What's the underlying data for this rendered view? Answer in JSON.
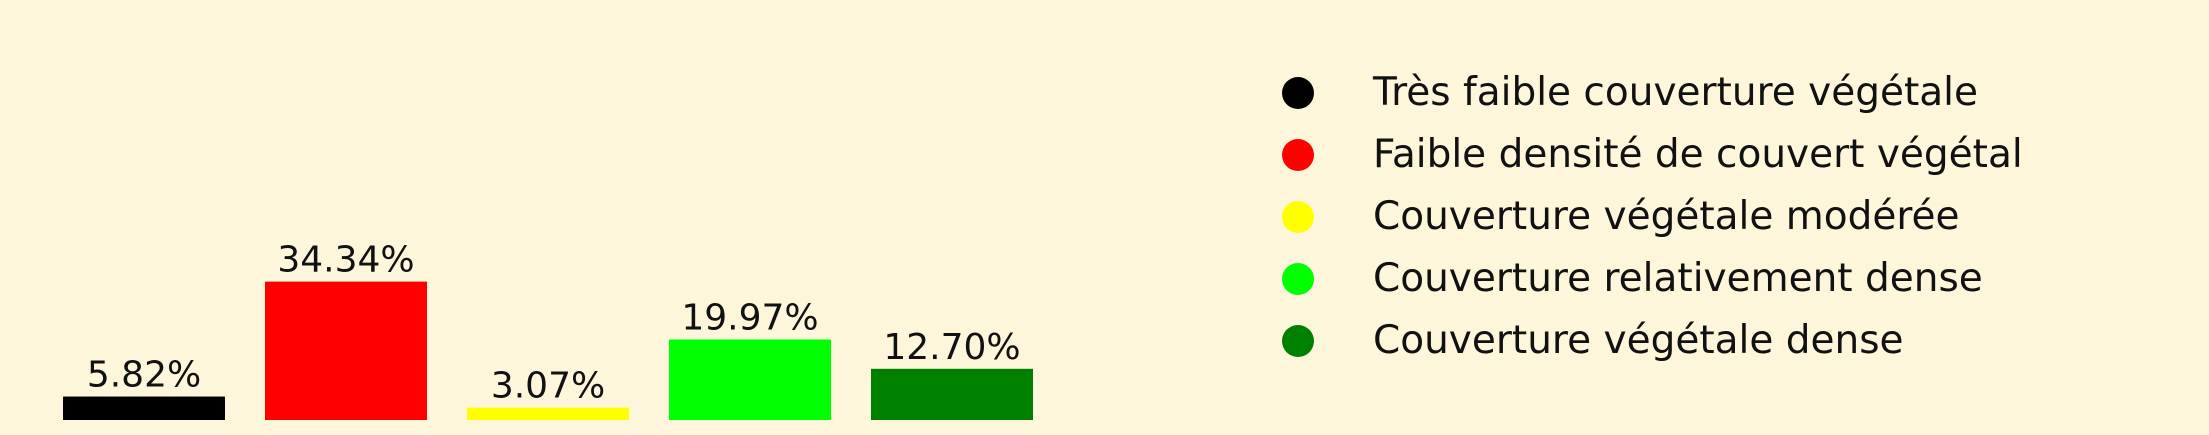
{
  "chart_data": {
    "type": "bar",
    "categories": [
      "Très faible couverture végétale",
      "Faible densité de couvert végétal",
      "Couverture végétale modérée",
      "Couverture relativement dense",
      "Couverture végétale dense"
    ],
    "values": [
      5.82,
      34.34,
      3.07,
      19.97,
      12.7
    ],
    "value_labels": [
      "5.82%",
      "34.34%",
      "3.07%",
      "19.97%",
      "12.70%"
    ],
    "colors": [
      "#000000",
      "#ff0000",
      "#ffff00",
      "#00ff00",
      "#008000"
    ],
    "legend": {
      "placement": "right",
      "entries": [
        {
          "label": "Très faible couverture végétale",
          "color": "#000000"
        },
        {
          "label": "Faible densité de couvert végétal",
          "color": "#ff0000"
        },
        {
          "label": "Couverture végétale modérée",
          "color": "#ffff00"
        },
        {
          "label": "Couverture relativement dense",
          "color": "#00ff00"
        },
        {
          "label": "Couverture végétale dense",
          "color": "#008000"
        }
      ]
    },
    "axes_visible": false,
    "grid": false,
    "background": "#fdf6da"
  }
}
